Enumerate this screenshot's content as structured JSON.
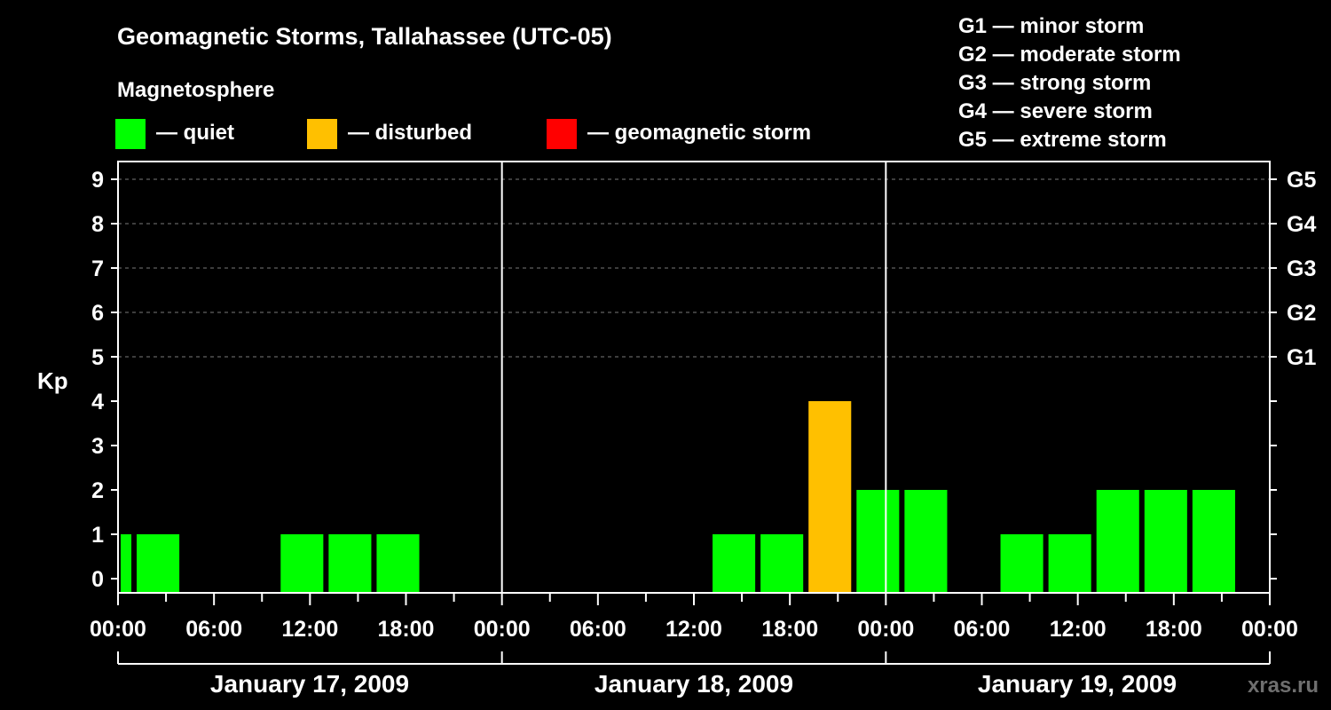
{
  "chart_data": {
    "type": "bar",
    "title": "Geomagnetic Storms, Tallahassee (UTC-05)",
    "legend": {
      "heading": "Magnetosphere",
      "items": [
        {
          "label": "— quiet",
          "color": "#00ff00"
        },
        {
          "label": "— disturbed",
          "color": "#ffc000"
        },
        {
          "label": "— geomagnetic storm",
          "color": "#ff0000"
        }
      ]
    },
    "storm_scale": [
      "G1 — minor storm",
      "G2 — moderate storm",
      "G3 — strong storm",
      "G4 — severe storm",
      "G5 — extreme storm"
    ],
    "ylabel": "Kp",
    "ylim": [
      0,
      9
    ],
    "y_ticks": [
      "0",
      "1",
      "2",
      "3",
      "4",
      "5",
      "6",
      "7",
      "8",
      "9"
    ],
    "right_ticks": [
      {
        "kp": 5,
        "label": "G1"
      },
      {
        "kp": 6,
        "label": "G2"
      },
      {
        "kp": 7,
        "label": "G3"
      },
      {
        "kp": 8,
        "label": "G4"
      },
      {
        "kp": 9,
        "label": "G5"
      }
    ],
    "x_range_hours": [
      0,
      72
    ],
    "x_tick_labels": [
      "00:00",
      "06:00",
      "12:00",
      "18:00",
      "00:00",
      "06:00",
      "12:00",
      "18:00",
      "00:00",
      "06:00",
      "12:00",
      "18:00",
      "00:00"
    ],
    "days": [
      "January 17, 2009",
      "January 18, 2009",
      "January 19, 2009"
    ],
    "colors": {
      "quiet": "#00ff00",
      "disturbed": "#ffc000",
      "storm": "#ff0000"
    },
    "bars": [
      {
        "start_hour": 0,
        "end_hour": 1,
        "kp": 1,
        "level": "quiet"
      },
      {
        "start_hour": 1,
        "end_hour": 4,
        "kp": 1,
        "level": "quiet"
      },
      {
        "start_hour": 10,
        "end_hour": 13,
        "kp": 1,
        "level": "quiet"
      },
      {
        "start_hour": 13,
        "end_hour": 16,
        "kp": 1,
        "level": "quiet"
      },
      {
        "start_hour": 16,
        "end_hour": 19,
        "kp": 1,
        "level": "quiet"
      },
      {
        "start_hour": 37,
        "end_hour": 40,
        "kp": 1,
        "level": "quiet"
      },
      {
        "start_hour": 40,
        "end_hour": 43,
        "kp": 1,
        "level": "quiet"
      },
      {
        "start_hour": 43,
        "end_hour": 46,
        "kp": 4,
        "level": "disturbed"
      },
      {
        "start_hour": 46,
        "end_hour": 49,
        "kp": 2,
        "level": "quiet"
      },
      {
        "start_hour": 49,
        "end_hour": 52,
        "kp": 2,
        "level": "quiet"
      },
      {
        "start_hour": 55,
        "end_hour": 58,
        "kp": 1,
        "level": "quiet"
      },
      {
        "start_hour": 58,
        "end_hour": 61,
        "kp": 1,
        "level": "quiet"
      },
      {
        "start_hour": 61,
        "end_hour": 64,
        "kp": 2,
        "level": "quiet"
      },
      {
        "start_hour": 64,
        "end_hour": 67,
        "kp": 2,
        "level": "quiet"
      },
      {
        "start_hour": 67,
        "end_hour": 70,
        "kp": 2,
        "level": "quiet"
      }
    ],
    "credit": "xras.ru"
  }
}
